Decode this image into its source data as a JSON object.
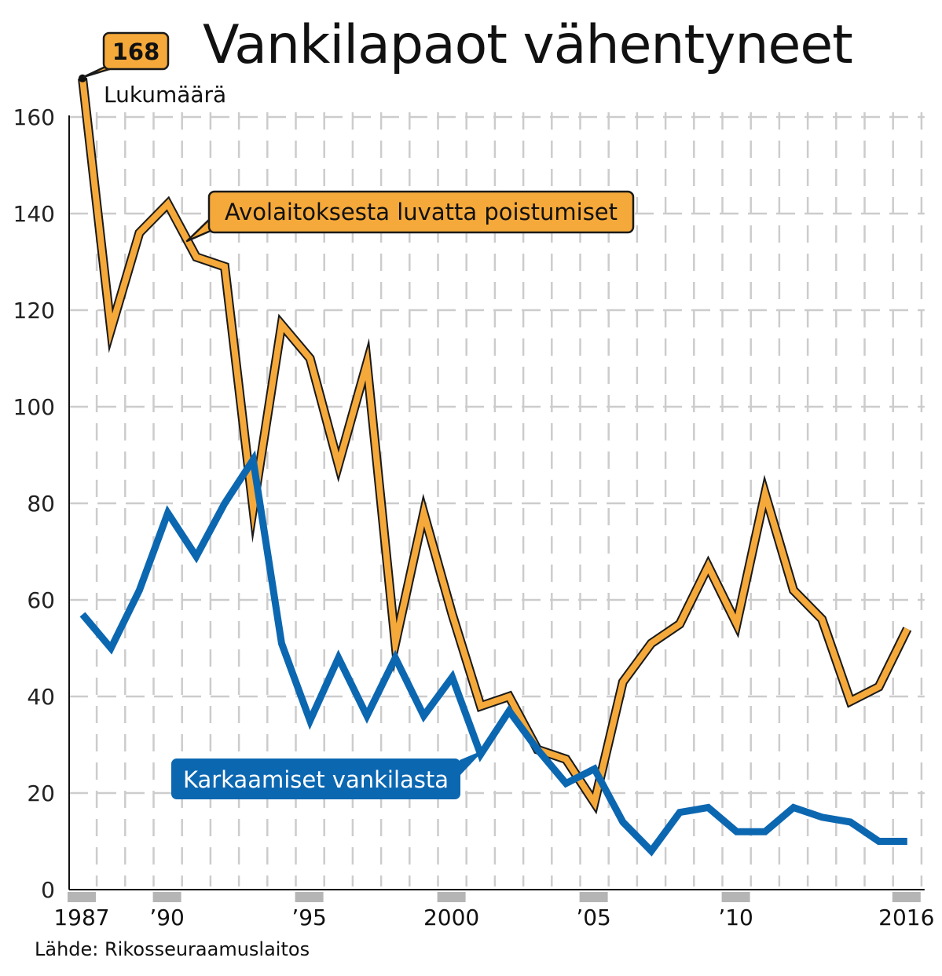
{
  "title": "Vankilapaot vähentyneet",
  "unit": "Lukumäärä",
  "source": "Lähde: Rikosseuraamuslaitos",
  "peak_callout": "168",
  "colors": {
    "orange": "#f5a93a",
    "blue": "#0c67b1",
    "grid": "#cccccc",
    "axis": "#111111"
  },
  "chart_data": {
    "type": "line",
    "title": "Vankilapaot vähentyneet",
    "ylabel": "Lukumäärä",
    "xlabel": "",
    "x": [
      1987,
      1988,
      1989,
      1990,
      1991,
      1992,
      1993,
      1994,
      1995,
      1996,
      1997,
      1998,
      1999,
      2000,
      2001,
      2002,
      2003,
      2004,
      2005,
      2006,
      2007,
      2008,
      2009,
      2010,
      2011,
      2012,
      2013,
      2014,
      2015,
      2016
    ],
    "x_tick_labels": [
      {
        "x": 1987,
        "label": "1987"
      },
      {
        "x": 1990,
        "label": "’90"
      },
      {
        "x": 1995,
        "label": "’95"
      },
      {
        "x": 2000,
        "label": "2000"
      },
      {
        "x": 2005,
        "label": "’05"
      },
      {
        "x": 2010,
        "label": "’10"
      },
      {
        "x": 2016,
        "label": "2016"
      }
    ],
    "y_ticks": [
      0,
      20,
      40,
      60,
      80,
      100,
      120,
      140,
      160
    ],
    "ylim": [
      0,
      160
    ],
    "grid": true,
    "series": [
      {
        "name": "Avolaitoksesta luvatta poistumiset",
        "color": "#f5a93a",
        "values": [
          168,
          116,
          136,
          142,
          131,
          129,
          79,
          117,
          110,
          88,
          109,
          51,
          78,
          57,
          38,
          40,
          29,
          27,
          18,
          43,
          51,
          55,
          67,
          55,
          82,
          62,
          56,
          39,
          42,
          54
        ]
      },
      {
        "name": "Karkaamiset vankilasta",
        "color": "#0c67b1",
        "values": [
          57,
          50,
          62,
          78,
          69,
          80,
          89,
          51,
          35,
          48,
          36,
          48,
          36,
          44,
          28,
          37,
          29,
          22,
          25,
          14,
          8,
          16,
          17,
          12,
          12,
          17,
          15,
          14,
          10,
          10
        ]
      }
    ]
  }
}
